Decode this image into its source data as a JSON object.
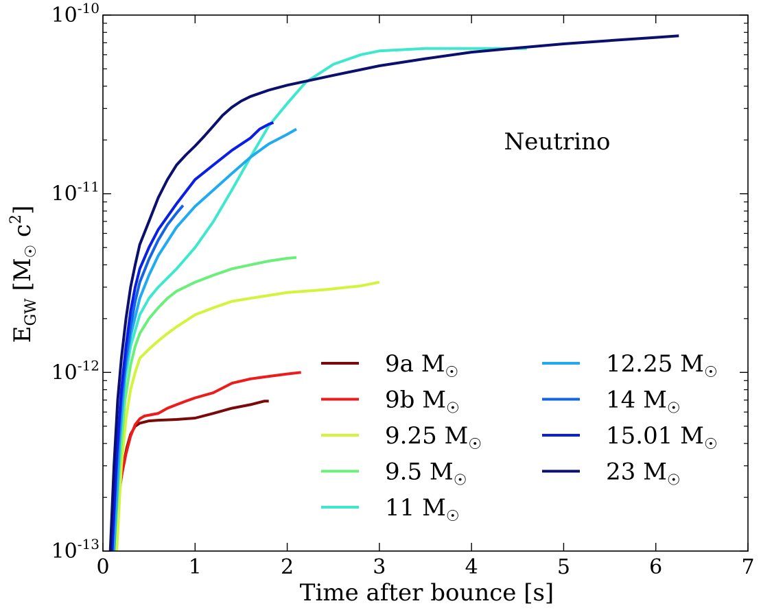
{
  "chart_data": {
    "type": "line",
    "xlabel": "Time after bounce [s]",
    "ylabel": "E_GW [M_☉ c²]",
    "ylabel_parts": {
      "base": "E",
      "sub": "GW",
      "unit_open": " [M",
      "sun": "☉",
      "unit_c": " c",
      "exp": "2",
      "unit_close": "]"
    },
    "xlim": [
      0,
      7
    ],
    "ylim": [
      1e-13,
      1e-10
    ],
    "yscale": "log",
    "x_ticks": [
      "0",
      "1",
      "2",
      "3",
      "4",
      "5",
      "6",
      "7"
    ],
    "y_ticks": [
      {
        "base": "10",
        "exp": "-10"
      },
      {
        "base": "10",
        "exp": "-11"
      },
      {
        "base": "10",
        "exp": "-12"
      },
      {
        "base": "10",
        "exp": "-13"
      }
    ],
    "annotation": "Neutrino",
    "legend_location": "lower-right",
    "legend_columns": 2,
    "sun_symbol": "☉",
    "series": [
      {
        "name": "9a M☉",
        "name_base": "9a M",
        "color": "#7a0a0a",
        "x": [
          0.1,
          0.14,
          0.18,
          0.22,
          0.26,
          0.3,
          0.35,
          0.4,
          0.5,
          0.6,
          0.8,
          1.0,
          1.2,
          1.4,
          1.6,
          1.75,
          1.8
        ],
        "y": [
          1e-13,
          1.6e-13,
          2.2e-13,
          3e-13,
          3.8e-13,
          4.5e-13,
          5e-13,
          5.2e-13,
          5.35e-13,
          5.4e-13,
          5.45e-13,
          5.55e-13,
          5.9e-13,
          6.3e-13,
          6.6e-13,
          6.9e-13,
          6.9e-13
        ]
      },
      {
        "name": "9b M☉",
        "name_base": "9b M",
        "color": "#ee1b1b",
        "x": [
          0.12,
          0.16,
          0.2,
          0.25,
          0.3,
          0.35,
          0.4,
          0.45,
          0.6,
          0.7,
          0.8,
          0.9,
          1.0,
          1.2,
          1.4,
          1.6,
          1.8,
          2.0,
          2.15
        ],
        "y": [
          1e-13,
          1.8e-13,
          2.6e-13,
          3.5e-13,
          4.4e-13,
          5.1e-13,
          5.5e-13,
          5.7e-13,
          5.9e-13,
          6.3e-13,
          6.6e-13,
          6.9e-13,
          7.2e-13,
          7.7e-13,
          8.7e-13,
          9.2e-13,
          9.5e-13,
          9.8e-13,
          1e-12
        ]
      },
      {
        "name": "9.25 M☉",
        "name_base": "9.25 M",
        "color": "#d2f53c",
        "x": [
          0.15,
          0.2,
          0.25,
          0.3,
          0.35,
          0.4,
          0.5,
          0.6,
          0.7,
          0.8,
          1.0,
          1.2,
          1.4,
          1.6,
          2.0,
          2.4,
          2.8,
          3.0
        ],
        "y": [
          1e-13,
          3e-13,
          5.5e-13,
          8e-13,
          1e-12,
          1.2e-12,
          1.35e-12,
          1.5e-12,
          1.65e-12,
          1.8e-12,
          2.1e-12,
          2.3e-12,
          2.5e-12,
          2.6e-12,
          2.8e-12,
          2.9e-12,
          3.05e-12,
          3.2e-12
        ]
      },
      {
        "name": "9.5 M☉",
        "name_base": "9.5 M",
        "color": "#6af07a",
        "x": [
          0.12,
          0.18,
          0.24,
          0.3,
          0.35,
          0.4,
          0.5,
          0.6,
          0.7,
          0.8,
          1.0,
          1.2,
          1.4,
          1.6,
          1.8,
          2.0,
          2.1
        ],
        "y": [
          1e-13,
          3e-13,
          7e-13,
          1.1e-12,
          1.4e-12,
          1.65e-12,
          2e-12,
          2.3e-12,
          2.6e-12,
          2.85e-12,
          3.2e-12,
          3.5e-12,
          3.8e-12,
          4e-12,
          4.2e-12,
          4.35e-12,
          4.4e-12
        ]
      },
      {
        "name": "11 M☉",
        "name_base": "11 M",
        "color": "#3ee8cf",
        "x": [
          0.12,
          0.18,
          0.24,
          0.3,
          0.4,
          0.5,
          0.6,
          0.8,
          1.0,
          1.2,
          1.4,
          1.6,
          1.8,
          2.0,
          2.2,
          2.5,
          2.8,
          3.0,
          3.5,
          4.0,
          4.5,
          4.6
        ],
        "y": [
          1e-13,
          4e-13,
          9e-13,
          1.4e-12,
          2.1e-12,
          2.6e-12,
          3e-12,
          3.8e-12,
          5e-12,
          7e-12,
          1.05e-11,
          1.6e-11,
          2.4e-11,
          3.2e-11,
          4.2e-11,
          5.3e-11,
          6e-11,
          6.3e-11,
          6.5e-11,
          6.5e-11,
          6.5e-11,
          6.5e-11
        ]
      },
      {
        "name": "12.25 M☉",
        "name_base": "12.25 M",
        "color": "#20aaf0",
        "x": [
          0.12,
          0.18,
          0.24,
          0.3,
          0.4,
          0.5,
          0.6,
          0.8,
          1.0,
          1.2,
          1.4,
          1.6,
          1.8,
          2.0,
          2.1
        ],
        "y": [
          1e-13,
          4e-13,
          1e-12,
          1.6e-12,
          2.6e-12,
          3.5e-12,
          4.5e-12,
          6.5e-12,
          8.5e-12,
          1.05e-11,
          1.3e-11,
          1.6e-11,
          1.9e-11,
          2.15e-11,
          2.3e-11
        ]
      },
      {
        "name": "14 M☉",
        "name_base": "14 M",
        "color": "#1464e6",
        "x": [
          0.1,
          0.15,
          0.2,
          0.25,
          0.3,
          0.35,
          0.4,
          0.5,
          0.6,
          0.7,
          0.8,
          0.87
        ],
        "y": [
          1e-13,
          3e-13,
          7e-13,
          1.2e-12,
          1.8e-12,
          2.5e-12,
          3.2e-12,
          4.3e-12,
          5.5e-12,
          6.7e-12,
          7.8e-12,
          8.6e-12
        ]
      },
      {
        "name": "15.01 M☉",
        "name_base": "15.01 M",
        "color": "#0a1ee6",
        "x": [
          0.1,
          0.15,
          0.2,
          0.25,
          0.3,
          0.35,
          0.4,
          0.5,
          0.6,
          0.8,
          1.0,
          1.2,
          1.4,
          1.6,
          1.7,
          1.8,
          1.85
        ],
        "y": [
          1e-13,
          3.5e-13,
          8e-13,
          1.4e-12,
          2.2e-12,
          3e-12,
          3.8e-12,
          5e-12,
          6.3e-12,
          8.8e-12,
          1.2e-11,
          1.45e-11,
          1.75e-11,
          2.05e-11,
          2.3e-11,
          2.45e-11,
          2.5e-11
        ]
      },
      {
        "name": "23 M☉",
        "name_base": "23 M",
        "color": "#0b0f6e",
        "x": [
          0.08,
          0.12,
          0.16,
          0.2,
          0.25,
          0.3,
          0.35,
          0.4,
          0.5,
          0.6,
          0.7,
          0.8,
          0.9,
          1.0,
          1.1,
          1.2,
          1.3,
          1.4,
          1.5,
          1.6,
          1.8,
          2.0,
          2.5,
          3.0,
          3.5,
          4.0,
          4.5,
          5.0,
          5.5,
          6.0,
          6.25
        ],
        "y": [
          1e-13,
          3e-13,
          7e-13,
          1.2e-12,
          2e-12,
          3e-12,
          4e-12,
          5.2e-12,
          7e-12,
          9.5e-12,
          1.2e-11,
          1.45e-11,
          1.65e-11,
          1.85e-11,
          2.1e-11,
          2.4e-11,
          2.75e-11,
          3.05e-11,
          3.3e-11,
          3.5e-11,
          3.8e-11,
          4.05e-11,
          4.6e-11,
          5.2e-11,
          5.7e-11,
          6.2e-11,
          6.55e-11,
          6.9e-11,
          7.2e-11,
          7.5e-11,
          7.65e-11
        ]
      }
    ]
  }
}
